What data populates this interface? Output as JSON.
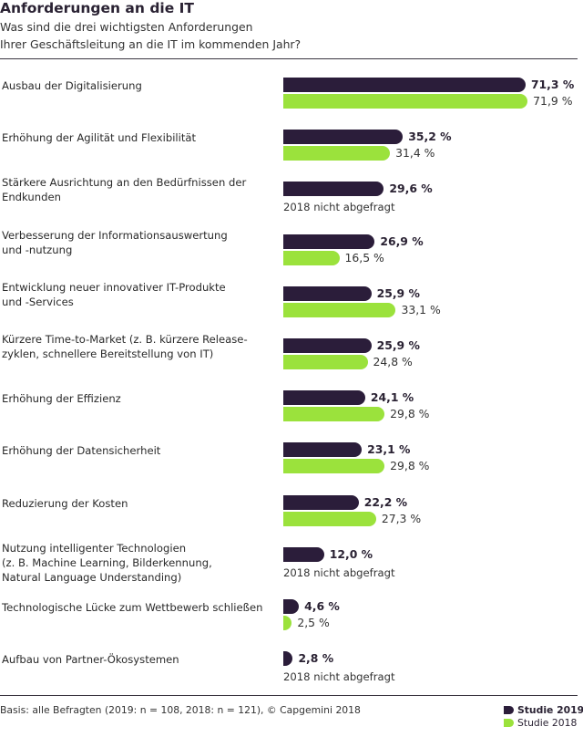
{
  "title": "Anforderungen an die IT",
  "subtitle": [
    "Was sind die drei wichtigsten Anforderungen",
    "Ihrer Geschäftsleitung an die IT im kommenden Jahr?"
  ],
  "footnote": "Basis: alle Befragten (2019: n = 108, 2018: n = 121), © Capgemini 2018",
  "colors": {
    "s2019": "#2b1d3a",
    "s2018": "#9be23c"
  },
  "chart_data": {
    "type": "bar",
    "orientation": "horizontal",
    "xlim": [
      0,
      100
    ],
    "grid": false,
    "legend_position": "bottom-right",
    "categories": [
      [
        "Ausbau der Digitalisierung"
      ],
      [
        "Erhöhung der Agilität und Flexibilität"
      ],
      [
        "Stärkere Ausrichtung an den Bedürfnissen der",
        "Endkunden"
      ],
      [
        "Verbesserung der Informationsauswertung",
        "und -nutzung"
      ],
      [
        "Entwicklung neuer innovativer IT-Produkte",
        "und -Services"
      ],
      [
        "Kürzere Time-to-Market (z. B. kürzere Release-",
        "zyklen, schnellere Bereitstellung von IT)"
      ],
      [
        "Erhöhung der Effizienz"
      ],
      [
        "Erhöhung der Datensicherheit"
      ],
      [
        "Reduzierung der Kosten"
      ],
      [
        "Nutzung intelligenter Technologien",
        "(z. B. Machine Learning, Bilderkennung,",
        "Natural Language Understanding)"
      ],
      [
        "Technologische Lücke zum Wettbewerb schließen"
      ],
      [
        "Aufbau von Partner-Ökosystemen"
      ]
    ],
    "series": [
      {
        "name": "Studie 2019",
        "values": [
          71.3,
          35.2,
          29.6,
          26.9,
          25.9,
          25.9,
          24.1,
          23.1,
          22.2,
          12.0,
          4.6,
          2.8
        ],
        "labels": [
          "71,3 %",
          "35,2 %",
          "29,6 %",
          "26,9 %",
          "25,9 %",
          "25,9 %",
          "24,1 %",
          "23,1 %",
          "22,2 %",
          "12,0 %",
          "4,6 %",
          "2,8 %"
        ]
      },
      {
        "name": "Studie 2018",
        "values": [
          71.9,
          31.4,
          null,
          16.5,
          33.1,
          24.8,
          29.8,
          29.8,
          27.3,
          null,
          2.5,
          null
        ],
        "labels": [
          "71,9 %",
          "31,4 %",
          "2018 nicht abgefragt",
          "16,5 %",
          "33,1 %",
          "24,8 %",
          "29,8 %",
          "29,8 %",
          "27,3 %",
          "2018 nicht abgefragt",
          "2,5 %",
          "2018 nicht abgefragt"
        ]
      }
    ]
  }
}
